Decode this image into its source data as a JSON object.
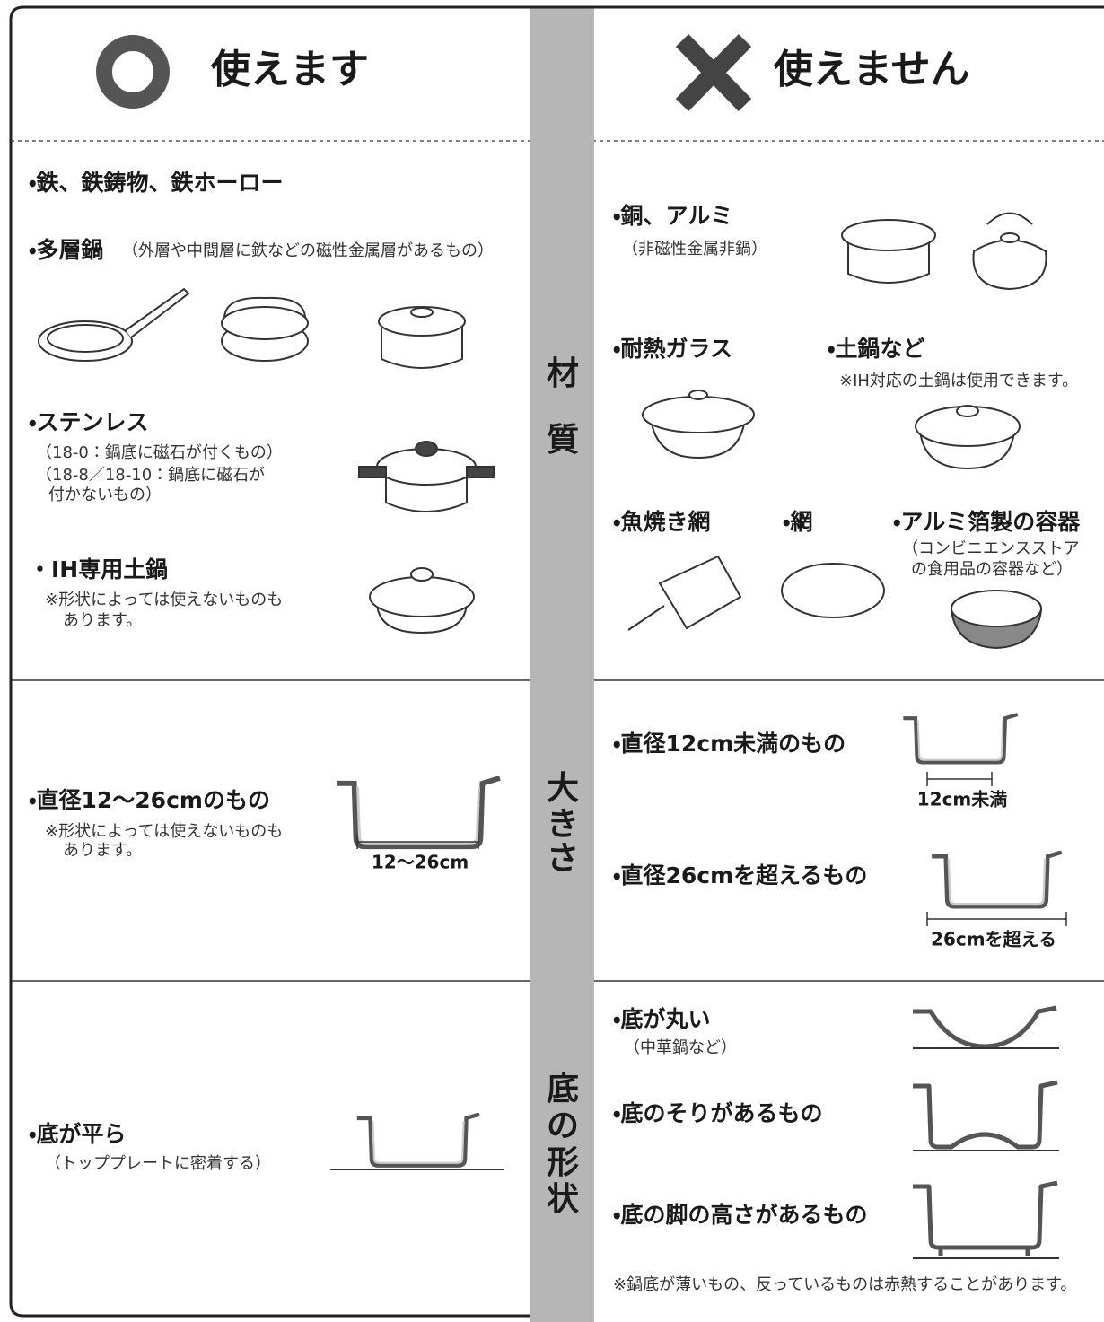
{
  "header": {
    "ok_title": "使えます",
    "ng_title": "使えません"
  },
  "material": {
    "label": [
      "材",
      "質"
    ],
    "ok": [
      {
        "title": "・鉄、鉄鋳物、鉄ホーロー"
      },
      {
        "title": "・多層鍋",
        "note": "（外層や中間層に鉄などの磁性金属層があるもの）"
      },
      {
        "title": "・ステンレス",
        "notes": [
          "（18-0：鍋底に磁石が付くもの）",
          "（18-8／18-10：鍋底に磁石が",
          "付かないもの）"
        ]
      },
      {
        "title": "・IH専用土鍋",
        "notes": [
          "※形状によっては使えないものも",
          "あります。"
        ]
      }
    ],
    "ng": [
      {
        "title": "・銅、アルミ",
        "note": "（非磁性金属非鍋）"
      },
      {
        "title": "・耐熱ガラス"
      },
      {
        "title": "・土鍋など",
        "note": "※IH対応の土鍋は使用できます。"
      },
      {
        "title": "・魚焼き網"
      },
      {
        "title": "・網"
      },
      {
        "title": "・アルミ箔製の容器",
        "notes": [
          "（コンビニエンスストア",
          "の食用品の容器など）"
        ]
      }
    ]
  },
  "size": {
    "label": [
      "大",
      "き",
      "さ"
    ],
    "ok": [
      {
        "title": "・直径12〜26cmのもの",
        "notes": [
          "※形状によっては使えないものも",
          "あります。"
        ],
        "dimension": "12〜26cm"
      }
    ],
    "ng": [
      {
        "title": "・直径12cm未満のもの",
        "dimension": "12cm未満"
      },
      {
        "title": "・直径26cmを超えるもの",
        "dimension": "26cmを超える"
      }
    ]
  },
  "shape": {
    "label": [
      "底",
      "の",
      "形",
      "状"
    ],
    "ok": [
      {
        "title": "・底が平ら",
        "note": "（トッププレートに密着する）"
      }
    ],
    "ng": [
      {
        "title": "・底が丸い",
        "note": "（中華鍋など）"
      },
      {
        "title": "・底のそりがあるもの"
      },
      {
        "title": "・底の脚の高さがあるもの"
      }
    ],
    "footnote": "※鍋底が薄いもの、反っているものは赤熱することがあります。"
  }
}
